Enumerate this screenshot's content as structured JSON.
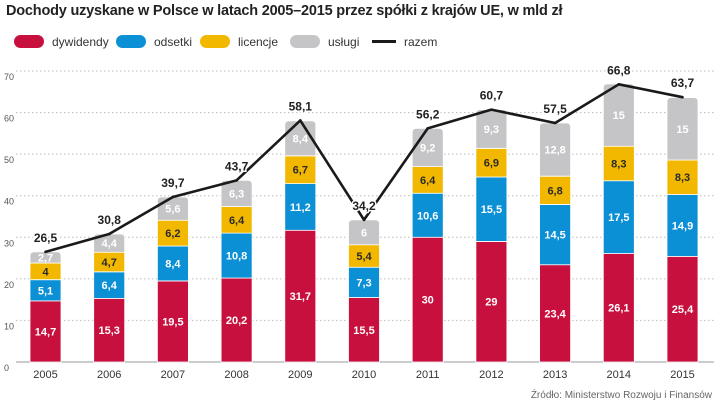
{
  "chart_data": {
    "type": "bar",
    "stacked": true,
    "title": "Dochody uzyskane w Polsce w latach 2005–2015 przez spółki z krajów UE, w mld zł",
    "source": "Źródło: Ministerstwo Rozwoju i Finansów",
    "categories": [
      "2005",
      "2006",
      "2007",
      "2008",
      "2009",
      "2010",
      "2011",
      "2012",
      "2013",
      "2014",
      "2015"
    ],
    "ylim": [
      0,
      70
    ],
    "yticks": [
      0,
      10,
      20,
      30,
      40,
      50,
      60,
      70
    ],
    "grid": true,
    "legend_position": "top-left",
    "series": [
      {
        "name": "dywidendy",
        "color": "#c8103e",
        "values": [
          14.7,
          15.3,
          19.5,
          20.2,
          31.7,
          15.5,
          30,
          29,
          23.4,
          26.1,
          25.4
        ],
        "labels": [
          "14,7",
          "15,3",
          "19,5",
          "20,2",
          "31,7",
          "15,5",
          "30",
          "29",
          "23,4",
          "26,1",
          "25,4"
        ]
      },
      {
        "name": "odsetki",
        "color": "#0b8fd5",
        "values": [
          5.1,
          6.4,
          8.4,
          10.8,
          11.2,
          7.3,
          10.6,
          15.5,
          14.5,
          17.5,
          14.9
        ],
        "labels": [
          "5,1",
          "6,4",
          "8,4",
          "10,8",
          "11,2",
          "7,3",
          "10,6",
          "15,5",
          "14,5",
          "17,5",
          "14,9"
        ]
      },
      {
        "name": "licencje",
        "color": "#f2b800",
        "values": [
          4,
          4.7,
          6.2,
          6.4,
          6.7,
          5.4,
          6.4,
          6.9,
          6.8,
          8.3,
          8.3
        ],
        "labels": [
          "4",
          "4,7",
          "6,2",
          "6,4",
          "6,7",
          "5,4",
          "6,4",
          "6,9",
          "6,8",
          "8,3",
          "8,3"
        ]
      },
      {
        "name": "usługi",
        "color": "#c5c5c7",
        "values": [
          2.7,
          4.4,
          5.6,
          6.3,
          8.4,
          6,
          9.2,
          9.3,
          12.8,
          15,
          15
        ],
        "labels": [
          "2,7",
          "4,4",
          "5,6",
          "6,3",
          "8,4",
          "6",
          "9,2",
          "9,3",
          "12,8",
          "15",
          "15"
        ]
      }
    ],
    "line": {
      "name": "razem",
      "color": "#1a1a1a",
      "values": [
        26.5,
        30.8,
        39.7,
        43.7,
        58.1,
        34.2,
        56.2,
        60.7,
        57.5,
        66.8,
        63.7
      ],
      "labels": [
        "26,5",
        "30,8",
        "39,7",
        "43,7",
        "58,1",
        "34,2",
        "56,2",
        "60,7",
        "57,5",
        "66,8",
        "63,7"
      ]
    }
  }
}
